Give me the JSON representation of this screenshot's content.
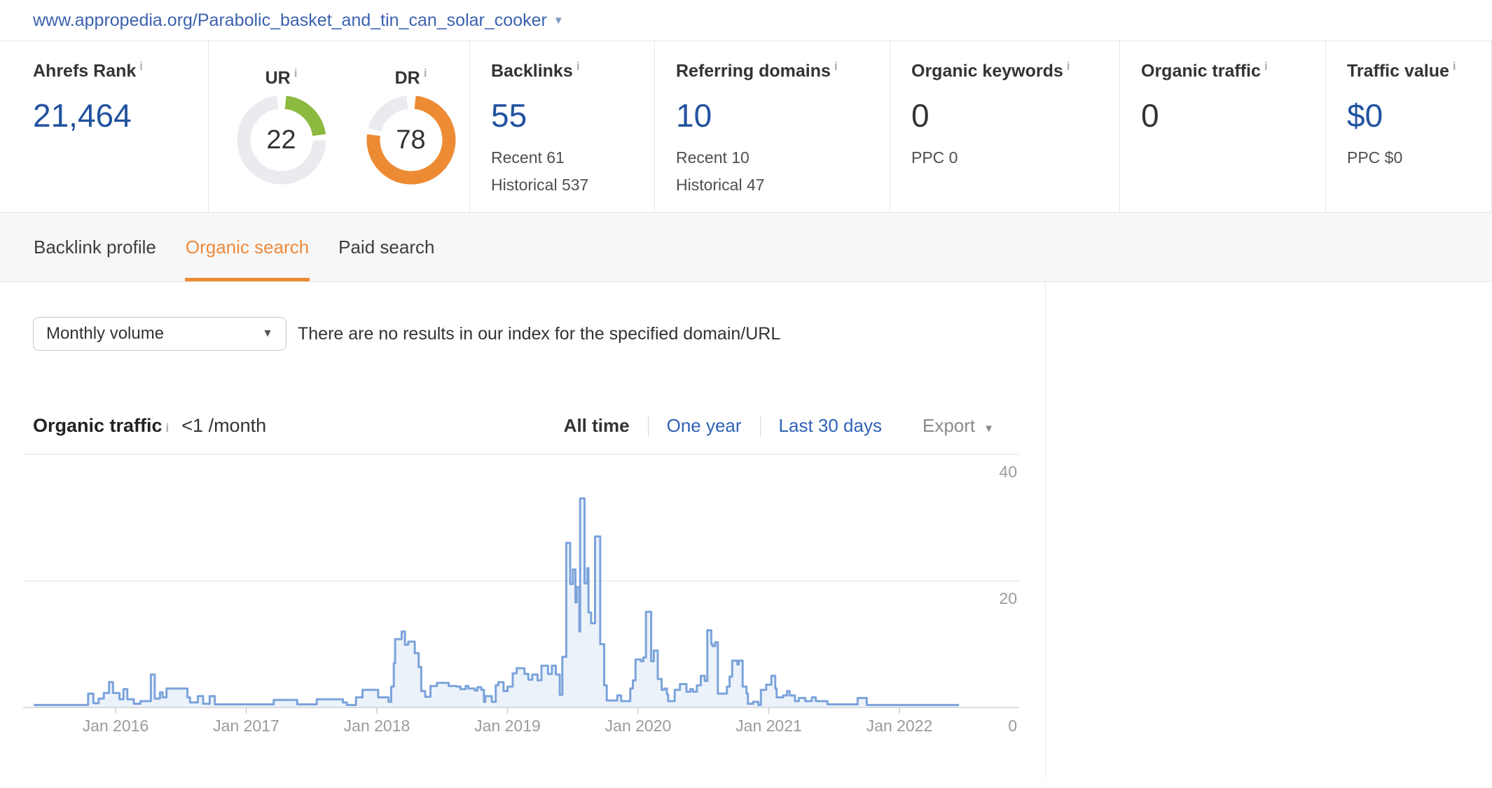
{
  "url_bar": {
    "url": "www.appropedia.org/Parabolic_basket_and_tin_can_solar_cooker",
    "caret": "▼"
  },
  "stats": {
    "ahrefs_rank": {
      "label": "Ahrefs Rank",
      "value": "21,464"
    },
    "ur": {
      "label": "UR",
      "value": "22",
      "number": 22,
      "max": 100,
      "color": "#8cba40",
      "track": "#e9ebee"
    },
    "dr": {
      "label": "DR",
      "value": "78",
      "number": 78,
      "max": 100,
      "color": "#ec8b33",
      "track": "#e9ebee"
    },
    "backlinks": {
      "label": "Backlinks",
      "value": "55",
      "recent": "Recent 61",
      "historical": "Historical 537"
    },
    "referring_domains": {
      "label": "Referring domains",
      "value": "10",
      "recent": "Recent 10",
      "historical": "Historical 47"
    },
    "organic_keywords": {
      "label": "Organic keywords",
      "value": "0",
      "sub": "PPC 0"
    },
    "organic_traffic": {
      "label": "Organic traffic",
      "value": "0"
    },
    "traffic_value": {
      "label": "Traffic value",
      "value": "$0",
      "sub": "PPC $0"
    }
  },
  "tabs": [
    {
      "label": "Backlink profile",
      "active": false
    },
    {
      "label": "Organic search",
      "active": true
    },
    {
      "label": "Paid search",
      "active": false
    }
  ],
  "filters": {
    "volume_select": "Monthly volume",
    "select_caret": "▼",
    "no_results_message": "There are no results in our index for the specified domain/URL"
  },
  "section": {
    "title": "Organic traffic",
    "rate": "<1 /month",
    "ranges": [
      "All time",
      "One year",
      "Last 30 days"
    ],
    "active_range": "All time",
    "export_label": "Export",
    "export_caret": "▼"
  },
  "chart_data": {
    "type": "area",
    "title": "Organic traffic",
    "unit": "visits per month",
    "x_axis": {
      "tick_years": [
        2016,
        2017,
        2018,
        2019,
        2020,
        2021,
        2022
      ],
      "tick_labels": [
        "Jan 2016",
        "Jan 2017",
        "Jan 2018",
        "Jan 2019",
        "Jan 2020",
        "Jan 2021",
        "Jan 2022"
      ],
      "range": [
        2015.3,
        2022.55
      ]
    },
    "y_axis": {
      "ticks": [
        0,
        20,
        40
      ],
      "max": 42,
      "grid": true
    },
    "legend": "none",
    "line_color": "#7ba3db",
    "fill_color": "rgba(123,163,219,0.14)",
    "series": [
      {
        "name": "Organic traffic",
        "points": [
          [
            2015.38,
            0.4
          ],
          [
            2015.79,
            2.2
          ],
          [
            2015.83,
            0.7
          ],
          [
            2015.87,
            1.4
          ],
          [
            2015.91,
            2.3
          ],
          [
            2015.95,
            4.0
          ],
          [
            2015.98,
            2.3
          ],
          [
            2016.03,
            1.3
          ],
          [
            2016.06,
            2.9
          ],
          [
            2016.09,
            1.3
          ],
          [
            2016.14,
            0.6
          ],
          [
            2016.19,
            1.0
          ],
          [
            2016.27,
            5.2
          ],
          [
            2016.3,
            1.4
          ],
          [
            2016.34,
            2.4
          ],
          [
            2016.36,
            1.6
          ],
          [
            2016.39,
            3.0
          ],
          [
            2016.55,
            1.6
          ],
          [
            2016.57,
            0.8
          ],
          [
            2016.63,
            1.8
          ],
          [
            2016.67,
            0.6
          ],
          [
            2016.72,
            1.8
          ],
          [
            2016.76,
            0.5
          ],
          [
            2017.21,
            1.2
          ],
          [
            2017.39,
            0.5
          ],
          [
            2017.54,
            1.3
          ],
          [
            2017.74,
            0.8
          ],
          [
            2017.77,
            0.4
          ],
          [
            2017.84,
            1.6
          ],
          [
            2017.89,
            2.8
          ],
          [
            2018.01,
            1.6
          ],
          [
            2018.09,
            0.9
          ],
          [
            2018.11,
            3.3
          ],
          [
            2018.13,
            7.0
          ],
          [
            2018.14,
            10.8
          ],
          [
            2018.19,
            12.0
          ],
          [
            2018.215,
            9.9
          ],
          [
            2018.24,
            10.4
          ],
          [
            2018.29,
            8.6
          ],
          [
            2018.32,
            6.4
          ],
          [
            2018.34,
            2.6
          ],
          [
            2018.37,
            1.7
          ],
          [
            2018.41,
            3.4
          ],
          [
            2018.46,
            3.9
          ],
          [
            2018.55,
            3.4
          ],
          [
            2018.61,
            3.3
          ],
          [
            2018.64,
            2.9
          ],
          [
            2018.68,
            3.4
          ],
          [
            2018.7,
            3.0
          ],
          [
            2018.75,
            2.7
          ],
          [
            2018.77,
            3.2
          ],
          [
            2018.8,
            2.8
          ],
          [
            2018.82,
            0.9
          ],
          [
            2018.83,
            1.8
          ],
          [
            2018.88,
            0.9
          ],
          [
            2018.91,
            3.5
          ],
          [
            2018.93,
            4.0
          ],
          [
            2018.97,
            2.6
          ],
          [
            2019.0,
            3.3
          ],
          [
            2019.04,
            5.4
          ],
          [
            2019.07,
            6.2
          ],
          [
            2019.13,
            5.3
          ],
          [
            2019.16,
            4.4
          ],
          [
            2019.19,
            5.2
          ],
          [
            2019.23,
            4.3
          ],
          [
            2019.26,
            6.6
          ],
          [
            2019.31,
            5.3
          ],
          [
            2019.34,
            6.6
          ],
          [
            2019.37,
            5.2
          ],
          [
            2019.4,
            2.0
          ],
          [
            2019.42,
            8.0
          ],
          [
            2019.45,
            26
          ],
          [
            2019.48,
            19.5
          ],
          [
            2019.5,
            21.8
          ],
          [
            2019.52,
            16.6
          ],
          [
            2019.53,
            19
          ],
          [
            2019.55,
            12
          ],
          [
            2019.556,
            33
          ],
          [
            2019.59,
            19.6
          ],
          [
            2019.61,
            22
          ],
          [
            2019.62,
            15
          ],
          [
            2019.64,
            13.3
          ],
          [
            2019.67,
            27
          ],
          [
            2019.71,
            10
          ],
          [
            2019.74,
            3.5
          ],
          [
            2019.76,
            1.1
          ],
          [
            2019.84,
            1.9
          ],
          [
            2019.87,
            1.0
          ],
          [
            2019.94,
            3.0
          ],
          [
            2019.96,
            4.3
          ],
          [
            2019.98,
            7.6
          ],
          [
            2020.02,
            7.3
          ],
          [
            2020.04,
            7.9
          ],
          [
            2020.06,
            15.1
          ],
          [
            2020.1,
            7.3
          ],
          [
            2020.12,
            9.0
          ],
          [
            2020.15,
            4.5
          ],
          [
            2020.18,
            2.8
          ],
          [
            2020.2,
            3.0
          ],
          [
            2020.22,
            2.1
          ],
          [
            2020.23,
            1.0
          ],
          [
            2020.28,
            2.8
          ],
          [
            2020.32,
            3.7
          ],
          [
            2020.37,
            2.5
          ],
          [
            2020.4,
            2.9
          ],
          [
            2020.42,
            2.5
          ],
          [
            2020.45,
            3.5
          ],
          [
            2020.48,
            5.0
          ],
          [
            2020.51,
            4.2
          ],
          [
            2020.53,
            12.2
          ],
          [
            2020.56,
            10.0
          ],
          [
            2020.57,
            9.7
          ],
          [
            2020.59,
            10.3
          ],
          [
            2020.61,
            2.2
          ],
          [
            2020.68,
            3.3
          ],
          [
            2020.7,
            4.9
          ],
          [
            2020.72,
            7.4
          ],
          [
            2020.76,
            6.8
          ],
          [
            2020.77,
            7.4
          ],
          [
            2020.8,
            3.3
          ],
          [
            2020.83,
            2.2
          ],
          [
            2020.84,
            0.6
          ],
          [
            2020.88,
            0.9
          ],
          [
            2020.92,
            0.4
          ],
          [
            2020.94,
            2.8
          ],
          [
            2020.98,
            3.6
          ],
          [
            2021.02,
            5.0
          ],
          [
            2021.05,
            3.0
          ],
          [
            2021.06,
            1.6
          ],
          [
            2021.11,
            1.9
          ],
          [
            2021.14,
            2.6
          ],
          [
            2021.16,
            1.9
          ],
          [
            2021.2,
            1.0
          ],
          [
            2021.23,
            1.5
          ],
          [
            2021.28,
            1.0
          ],
          [
            2021.33,
            1.6
          ],
          [
            2021.36,
            1.0
          ],
          [
            2021.45,
            0.5
          ],
          [
            2021.68,
            1.5
          ],
          [
            2021.75,
            0.4
          ],
          [
            2022.45,
            0.4
          ]
        ]
      }
    ]
  }
}
